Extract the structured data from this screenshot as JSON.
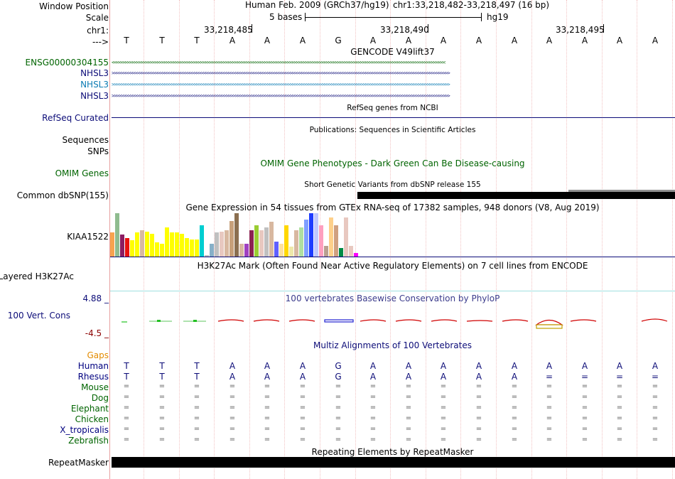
{
  "labels": {
    "window_position": "Window Position",
    "scale": "Scale",
    "chrom": "chr1:",
    "strand": "--->",
    "gencode_track": "ENSG00000304155",
    "nhsl3_a": "NHSL3",
    "nhsl3_b": "NHSL3",
    "nhsl3_c": "NHSL3",
    "refseq": "RefSeq Curated",
    "sequences": "Sequences",
    "snps": "SNPs",
    "omim": "OMIM Genes",
    "dbsnp": "Common dbSNP(155)",
    "gtex_gene": "KIAA1522",
    "h3k27ac": "Layered H3K27Ac",
    "cons_max": "4.88 _",
    "cons": "100 Vert. Cons",
    "cons_min": "-4.5 _",
    "gaps": "Gaps",
    "species": [
      {
        "name": "Human",
        "color": "#000080"
      },
      {
        "name": "Rhesus",
        "color": "#000080"
      },
      {
        "name": "Mouse",
        "color": "#006400"
      },
      {
        "name": "Dog",
        "color": "#006400"
      },
      {
        "name": "Elephant",
        "color": "#006400"
      },
      {
        "name": "Chicken",
        "color": "#006400"
      },
      {
        "name": "X_tropicalis",
        "color": "#000080"
      },
      {
        "name": "Zebrafish",
        "color": "#006400"
      }
    ],
    "repeatmasker": "RepeatMasker"
  },
  "header": {
    "assembly": "Human Feb. 2009 (GRCh37/hg19)",
    "position": "chr1:33,218,482-33,218,497 (16 bp)",
    "scale_text": "5 bases",
    "scale_db": "hg19",
    "tick_485": "33,218,485",
    "tick_490": "33,218,490",
    "tick_495": "33,218,495"
  },
  "bases": [
    "T",
    "T",
    "T",
    "A",
    "A",
    "A",
    "G",
    "A",
    "A",
    "A",
    "A",
    "A",
    "A",
    "A",
    "A",
    "A"
  ],
  "rhesus": [
    "T",
    "T",
    "T",
    "A",
    "A",
    "A",
    "G",
    "A",
    "A",
    "A",
    "A",
    "A",
    "=",
    "=",
    "=",
    "="
  ],
  "tracks": {
    "gencode_title": "GENCODE V49lift37",
    "refseq_title": "RefSeq genes from NCBI",
    "pubs_title": "Publications: Sequences in Scientific Articles",
    "omim_title": "OMIM Gene Phenotypes - Dark Green Can Be Disease-causing",
    "dbsnp_title": "Short Genetic Variants from dbSNP release 155",
    "gtex_title": "Gene Expression in 54 tissues from GTEx RNA-seq of 17382 samples, 948 donors (V8, Aug 2019)",
    "h3k27ac_title": "H3K27Ac Mark (Often Found Near Active Regulatory Elements) on 7 cell lines from ENCODE",
    "cons_title": "100 vertebrates Basewise Conservation by PhyloP",
    "multiz_title": "Multiz Alignments of 100 Vertebrates",
    "rmsk_title": "Repeating Elements by RepeatMasker"
  },
  "strand_glyphs": {
    "reverse": "<<<<<<<<<<<<<<<<<<<<<<<<<<<<<<<<<<<<<<<<<<<<<<<<<<<<<<<<<<<<<<<<<<<<<<<<<<<<<<<<<<<<<<<<<<<<<<<<<<<<<<<<<<<<<<<<<<<<<<<<<<<<<<<<<<<<<<<<<<<<<<<<<<",
    "forward": ">>>>>>>>>>>>>>>>>>>>>>>>>>>>>>>>>>>>>>>>>>>>>>>>>>>>>>>>>>>>>>>>>>>>>>>>>>>>>>>>>>>>>>>>>>>>>>>>>>>>>>>>>>>>>>>>>>>>>>>>>>>>>>>>>>>>>>>>>>>>>>>>>>>>"
  },
  "colors": {
    "gencode": "#006400",
    "nhsl3_dark": "#0c0c78",
    "nhsl3_light": "#0c7cb4",
    "refseq": "#0c0c78",
    "omim": "#006400",
    "gaps": "#e38b00",
    "cons": "#0c0c78",
    "phylop": "#0c0c78"
  },
  "gtex_values": [
    0.55,
    1.0,
    0.5,
    0.42,
    0.38,
    0.55,
    0.6,
    0.58,
    0.52,
    0.33,
    0.3,
    0.68,
    0.55,
    0.55,
    0.52,
    0.42,
    0.4,
    0.4,
    0.72,
    0.03,
    0.3,
    0.55,
    0.58,
    0.6,
    0.82,
    1.0,
    0.3,
    0.3,
    0.6,
    0.72,
    0.6,
    0.68,
    0.8,
    0.35,
    0.3,
    0.72,
    0.23,
    0.6,
    0.68,
    0.85,
    1.0,
    1.0,
    0.72,
    0.25,
    0.9,
    0.72,
    0.2,
    0.9,
    0.25,
    0.08
  ],
  "gtex_colors": [
    "#f7a34f",
    "#8fbc8f",
    "#8b1c62",
    "#e8110e",
    "#fefe00",
    "#fefe00",
    "#d8b8a0",
    "#fefe00",
    "#fefe00",
    "#fefe00",
    "#fefe00",
    "#fefe00",
    "#fefe00",
    "#fefe00",
    "#fefe00",
    "#fefe00",
    "#fefe00",
    "#fefe00",
    "#00ced1",
    "#c0c0c0",
    "#87b0c8",
    "#c0c0c0",
    "#e8c8c0",
    "#d8b8a0",
    "#c7a07a",
    "#8b6f50",
    "#d8b8a0",
    "#a040c0",
    "#8b2252",
    "#9acd32",
    "#e8c8c0",
    "#c0c0c0",
    "#d8b8a0",
    "#6060ff",
    "#fde0a0",
    "#ffd700",
    "#eee8aa",
    "#d8b8a0",
    "#b0e0a0",
    "#7f9fff",
    "#1e3cff",
    "#c0c8ff",
    "#fe9fbf",
    "#b8a090",
    "#fed08a",
    "#d0a080",
    "#008b45",
    "#e8c8c0",
    "#e8c8c0",
    "#fe00fe"
  ]
}
